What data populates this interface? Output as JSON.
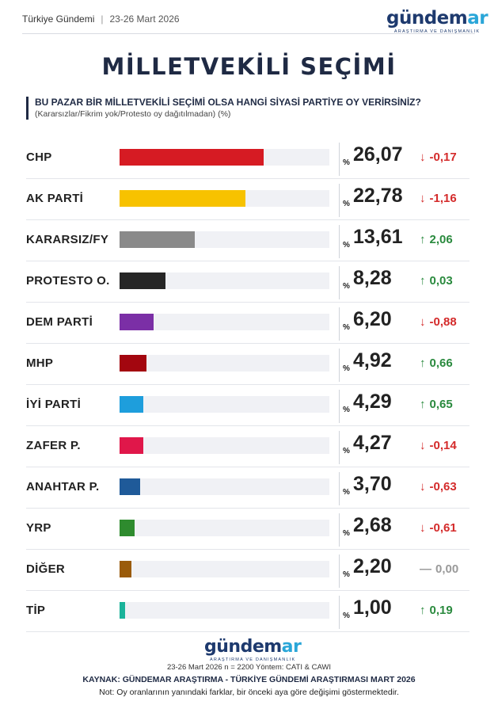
{
  "header": {
    "source_name": "Türkiye Gündemi",
    "date_range": "23-26 Mart 2026",
    "separator": "|"
  },
  "brand": {
    "name_main": "gündem",
    "name_accent": "ar",
    "tagline": "ARAŞTIRMA VE DANIŞMANLIK",
    "primary_color": "#1e3a6e",
    "accent_color": "#2aa6d8"
  },
  "title": "MİLLETVEKİLİ SEÇİMİ",
  "question": "BU PAZAR BİR MİLLETVEKİLİ SEÇİMİ OLSA HANGİ SİYASİ PARTİYE OY VERİRSİNİZ?",
  "question_note": "(Kararsızlar/Fikrim yok/Protesto oy dağıtılmadan) (%)",
  "chart_data": {
    "type": "bar",
    "orientation": "horizontal",
    "title": "MİLLETVEKİLİ SEÇİMİ",
    "xlabel": "",
    "ylabel": "",
    "xlim": [
      0,
      38
    ],
    "percent_symbol": "%",
    "categories": [
      "CHP",
      "AK PARTİ",
      "KARARSIZ/FY",
      "PROTESTO O.",
      "DEM PARTİ",
      "MHP",
      "İYİ PARTİ",
      "ZAFER P.",
      "ANAHTAR P.",
      "YRP",
      "DİĞER",
      "TİP"
    ],
    "values": [
      26.07,
      22.78,
      13.61,
      8.28,
      6.2,
      4.92,
      4.29,
      4.27,
      3.7,
      2.68,
      2.2,
      1.0
    ],
    "value_labels": [
      "26,07",
      "22,78",
      "13,61",
      "8,28",
      "6,20",
      "4,92",
      "4,29",
      "4,27",
      "3,70",
      "2,68",
      "2,20",
      "1,00"
    ],
    "changes": [
      "-0,17",
      "-1,16",
      "2,06",
      "0,03",
      "-0,88",
      "0,66",
      "0,65",
      "-0,14",
      "-0,63",
      "-0,61",
      "0,00",
      "0,19"
    ],
    "directions": [
      "down",
      "down",
      "up",
      "up",
      "down",
      "up",
      "up",
      "down",
      "down",
      "down",
      "flat",
      "up"
    ],
    "colors": [
      "#d61b23",
      "#f7c200",
      "#8a8a8a",
      "#262626",
      "#7b2fa6",
      "#a3060f",
      "#1e9edc",
      "#e0174a",
      "#1f5a99",
      "#2e8b2e",
      "#9a5b0a",
      "#1ab39a"
    ],
    "change_colors": {
      "up": "#2a8a3e",
      "down": "#d42b2b",
      "flat": "#9a9a9a"
    }
  },
  "footer": {
    "meta": "23-26 Mart 2026 n = 2200 Yöntem: CATI & CAWI",
    "source": "KAYNAK: GÜNDEMAR ARAŞTIRMA - TÜRKİYE GÜNDEMİ ARAŞTIRMASI MART 2026",
    "note": "Not: Oy oranlarının yanındaki farklar, bir önceki aya göre değişimi göstermektedir."
  }
}
